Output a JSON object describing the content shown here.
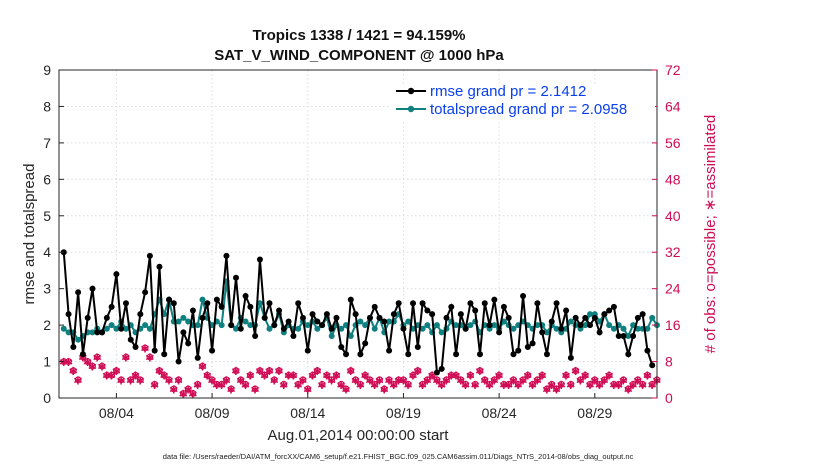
{
  "chart_data": {
    "type": "line",
    "title": "Tropics 1338 / 1421 = 94.159%",
    "subtitle": "SAT_V_WIND_COMPONENT @ 1000 hPa",
    "xlabel": "Aug.01,2014 00:00:00 start",
    "ylabel": "rmse and totalspread",
    "ylabel_right": "# of obs: o=possible; ∗=assimilated",
    "xlim": [
      0,
      31.25
    ],
    "ylim": [
      0,
      9
    ],
    "ylim_right": [
      0,
      72
    ],
    "x_ticks": [
      3,
      8,
      13,
      18,
      23,
      28
    ],
    "x_tick_labels": [
      "08/04",
      "08/09",
      "08/14",
      "08/19",
      "08/24",
      "08/29"
    ],
    "y_ticks": [
      0,
      1,
      2,
      3,
      4,
      5,
      6,
      7,
      8,
      9
    ],
    "y_ticks_right": [
      0,
      8,
      16,
      24,
      32,
      40,
      48,
      56,
      64,
      72
    ],
    "grid": true,
    "legend_position": "top-right",
    "colors": {
      "rmse": "#000000",
      "spread": "#0f8080",
      "obs": "#d00c55",
      "legend_text": "#0a3ff0"
    },
    "series": [
      {
        "name": "rmse grand pr = 2.1412",
        "color": "#000000",
        "values": [
          4.0,
          2.3,
          1.4,
          2.9,
          1.2,
          2.2,
          3.0,
          1.8,
          1.8,
          2.2,
          2.5,
          3.4,
          1.9,
          2.6,
          1.6,
          1.4,
          2.3,
          2.9,
          3.9,
          1.3,
          3.6,
          1.2,
          2.7,
          2.6,
          1.0,
          1.8,
          1.5,
          2.4,
          1.1,
          2.2,
          2.6,
          1.3,
          2.7,
          2.5,
          3.9,
          2.0,
          3.3,
          1.9,
          2.8,
          2.5,
          1.7,
          3.8,
          2.2,
          2.6,
          2.0,
          2.4,
          1.9,
          2.1,
          1.7,
          2.6,
          2.2,
          1.3,
          2.3,
          2.1,
          2.0,
          2.3,
          1.9,
          2.2,
          1.4,
          1.2,
          2.7,
          2.3,
          1.2,
          1.5,
          2.2,
          2.5,
          2.2,
          2.1,
          1.3,
          2.3,
          2.6,
          1.9,
          1.2,
          2.6,
          1.4,
          2.6,
          2.4,
          2.3,
          0.7,
          0.8,
          2.2,
          2.5,
          1.2,
          2.3,
          1.9,
          2.6,
          2.4,
          1.2,
          2.6,
          2.0,
          2.7,
          1.8,
          2.5,
          2.2,
          1.2,
          1.3,
          2.8,
          1.4,
          1.5,
          2.6,
          1.8,
          1.2,
          2.1,
          2.6,
          1.9,
          2.4,
          1.1,
          2.2,
          2.0,
          2.2,
          2.0,
          2.2,
          1.8,
          2.3,
          2.4,
          2.5,
          1.7,
          1.7,
          1.2,
          1.7,
          2.2,
          2.3,
          1.3,
          0.9
        ]
      },
      {
        "name": "totalspread grand pr = 2.0958",
        "color": "#0f8080",
        "values": [
          1.9,
          1.8,
          1.8,
          1.6,
          1.7,
          1.8,
          1.8,
          1.9,
          1.8,
          1.9,
          2.0,
          1.9,
          2.1,
          1.9,
          2.0,
          1.8,
          1.9,
          2.0,
          1.9,
          2.3,
          2.7,
          2.3,
          2.7,
          2.1,
          2.1,
          2.2,
          2.1,
          2.0,
          2.0,
          2.7,
          2.2,
          2.0,
          2.1,
          2.0,
          3.2,
          2.0,
          1.9,
          2.2,
          2.1,
          2.0,
          2.0,
          2.6,
          2.2,
          1.9,
          2.0,
          2.3,
          1.8,
          2.0,
          1.9,
          1.9,
          2.1,
          2.0,
          2.1,
          1.9,
          2.0,
          2.2,
          1.7,
          2.0,
          1.9,
          2.0,
          1.7,
          2.0,
          2.1,
          2.0,
          2.2,
          1.9,
          2.2,
          1.8,
          2.1,
          2.1,
          2.3,
          2.0,
          2.1,
          1.9,
          2.0,
          1.9,
          2.0,
          1.8,
          2.0,
          1.8,
          1.9,
          2.1,
          2.0,
          2.0,
          1.9,
          2.0,
          2.1,
          1.8,
          2.0,
          1.9,
          2.0,
          1.9,
          2.1,
          2.0,
          1.9,
          2.0,
          2.1,
          2.0,
          1.9,
          2.0,
          2.0,
          1.8,
          2.0,
          1.9,
          1.8,
          1.9,
          2.1,
          2.0,
          1.9,
          2.0,
          2.3,
          2.3,
          2.1,
          2.3,
          2.0,
          1.9,
          2.0,
          1.9,
          1.7,
          2.0,
          1.9,
          1.9,
          1.9,
          2.2,
          2.0
        ]
      },
      {
        "name": "obs possible",
        "marker": "o",
        "color": "#d00c55",
        "values": [
          8,
          8,
          6,
          4,
          9,
          8,
          7,
          9,
          7,
          5,
          5,
          6,
          4,
          9,
          4,
          5,
          4,
          11,
          9,
          3,
          6,
          5,
          4,
          2,
          4,
          1,
          2,
          1,
          3,
          7,
          5,
          4,
          3,
          3,
          4,
          2,
          6,
          4,
          3,
          5,
          2,
          6,
          5,
          6,
          4,
          6,
          3,
          5,
          5,
          3,
          4,
          2,
          5,
          6,
          3,
          5,
          4,
          5,
          3,
          2,
          6,
          4,
          3,
          5,
          4,
          3,
          4,
          2,
          4,
          3,
          4,
          4,
          3,
          5,
          6,
          3,
          4,
          5,
          4,
          3,
          4,
          5,
          5,
          4,
          3,
          5,
          3,
          6,
          4,
          3,
          4,
          5,
          3,
          3,
          4,
          3,
          4,
          5,
          3,
          4,
          5,
          2,
          3,
          2,
          3,
          5,
          3,
          6,
          4,
          5,
          3,
          4,
          3,
          4,
          5,
          3,
          3,
          4,
          2,
          3,
          4,
          3,
          5,
          3,
          4
        ]
      }
    ],
    "obs_assimilated_note": "assimilated counts drawn with ∗ markers"
  },
  "legend": {
    "rmse": "rmse grand pr = 2.1412",
    "spread": "totalspread grand pr = 2.0958"
  },
  "footer": "data file: /Users/raeder/DAI/ATM_forcXX/CAM6_setup/f.e21.FHIST_BGC.f09_025.CAM6assim.011/Diags_NTrS_2014-08/obs_diag_output.nc"
}
